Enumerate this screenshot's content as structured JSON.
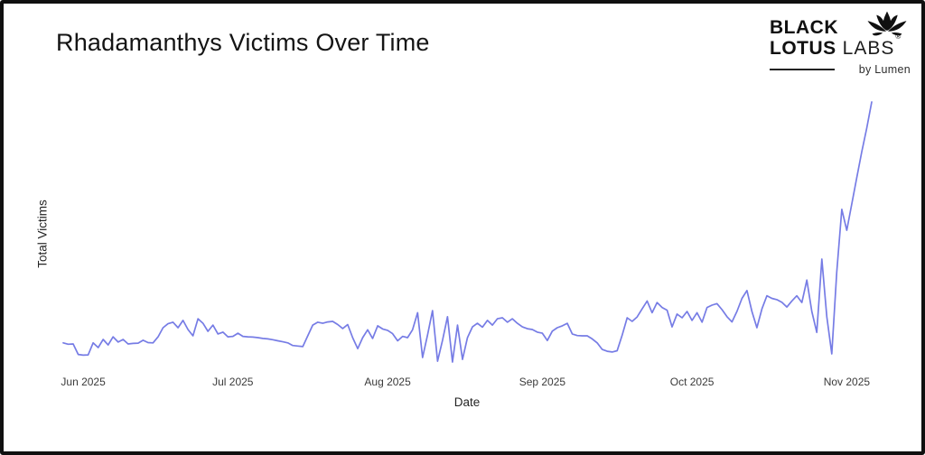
{
  "header": {
    "title": "Rhadamanthys Victims Over Time"
  },
  "logo": {
    "line1": "BLACK",
    "line2": "LOTUS",
    "line2b": "LABS",
    "registered_mark": "®",
    "byline": "by Lumen"
  },
  "chart_data": {
    "type": "line",
    "title": "Rhadamanthys Victims Over Time",
    "xlabel": "Date",
    "ylabel": "Total Victims",
    "x_start_date": "2025-05-28",
    "x_cadence": "daily",
    "x_tick_labels": [
      "Jun 2025",
      "Jul 2025",
      "Aug 2025",
      "Sep 2025",
      "Oct 2025",
      "Nov 2025"
    ],
    "x_tick_day_indices": [
      4,
      34,
      65,
      96,
      126,
      157
    ],
    "y_tick_labels_visible": false,
    "values_unit": "relative scale 0-100 (no y-axis tick values shown in image)",
    "ylim": [
      0,
      100
    ],
    "grid": false,
    "legend": false,
    "line_color": "#6a71e3",
    "values": [
      8,
      7.5,
      7.6,
      3.6,
      3.3,
      3.4,
      8,
      6.2,
      9.3,
      7.2,
      10.3,
      8.3,
      9.3,
      7.6,
      7.8,
      7.9,
      9,
      8.1,
      8,
      10.3,
      13.8,
      15.3,
      15.9,
      13.8,
      16.6,
      13.1,
      10.7,
      17.2,
      15.5,
      12.4,
      14.8,
      11.4,
      12.1,
      10.3,
      10.5,
      11.7,
      10.5,
      10.3,
      10.2,
      10,
      9.7,
      9.5,
      9.2,
      8.8,
      8.4,
      8,
      7,
      6.8,
      6.6,
      10.7,
      14.8,
      15.9,
      15.5,
      16,
      16.2,
      15,
      13.5,
      15,
      10,
      5.8,
      10,
      13,
      9.7,
      14.5,
      13.3,
      12.8,
      11.5,
      8.8,
      10.5,
      10,
      13,
      19.5,
      2.4,
      11,
      20.3,
      1,
      9,
      18,
      0.7,
      14.8,
      1.7,
      10,
      14.1,
      15.5,
      14,
      16.6,
      14.8,
      17.2,
      17.6,
      15.9,
      17.2,
      15.5,
      14.1,
      13.4,
      13.1,
      12.1,
      11.7,
      8.9,
      12.5,
      13.8,
      14.5,
      15.5,
      11.4,
      10.8,
      10.7,
      10.7,
      9.5,
      8,
      5.5,
      4.8,
      4.5,
      5,
      11,
      17.6,
      16.2,
      17.9,
      21,
      24,
      19.5,
      23.4,
      21.5,
      20.5,
      14.1,
      19,
      17.6,
      20,
      16.6,
      19.5,
      15.9,
      21.5,
      22.4,
      23,
      20.7,
      18,
      16,
      20,
      25,
      28,
      20,
      13.8,
      21,
      26,
      25,
      24.5,
      23.5,
      21.7,
      24,
      26,
      23.4,
      32,
      20,
      12,
      40,
      18,
      3.8,
      35,
      59,
      51,
      61,
      71,
      81,
      90,
      100
    ]
  }
}
